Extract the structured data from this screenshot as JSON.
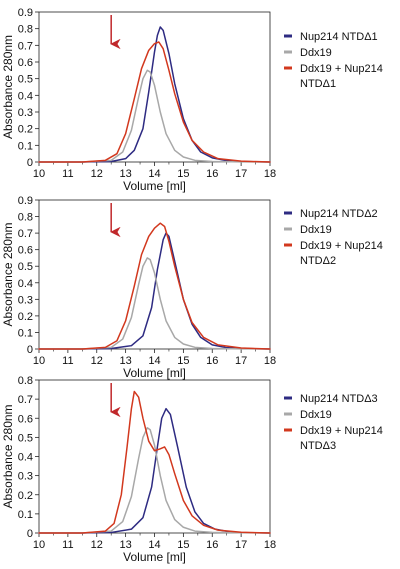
{
  "chart_data": [
    {
      "type": "line",
      "xlabel": "Volume [ml]",
      "ylabel": "Absorbance 280nm",
      "xlim": [
        10,
        18
      ],
      "ylim": [
        0,
        0.9
      ],
      "xticks": [
        "10",
        "11",
        "12",
        "13",
        "14",
        "15",
        "16",
        "17",
        "18"
      ],
      "yticks": [
        "0",
        "0.1",
        "0.2",
        "0.3",
        "0.4",
        "0.5",
        "0.6",
        "0.7",
        "0.8",
        "0.9"
      ],
      "arrow_x": 12.5,
      "legend": {
        "placement": "right",
        "entries": [
          {
            "label": "Nup214 NTDΔ1",
            "color": "#2e2b82"
          },
          {
            "label": "Ddx19",
            "color": "#a8a8a8"
          },
          {
            "label": "Ddx19 + Nup214",
            "label2": "NTDΔ1",
            "color": "#d2381e"
          }
        ]
      },
      "series": [
        {
          "color": "#2e2b82",
          "x": [
            10,
            11.5,
            12.5,
            13.0,
            13.3,
            13.6,
            13.8,
            14.0,
            14.1,
            14.2,
            14.3,
            14.5,
            14.7,
            15.0,
            15.3,
            15.6,
            16.0,
            16.5,
            17.0,
            18.0
          ],
          "y": [
            0,
            0,
            0.003,
            0.02,
            0.07,
            0.2,
            0.42,
            0.66,
            0.76,
            0.81,
            0.79,
            0.65,
            0.47,
            0.26,
            0.13,
            0.06,
            0.025,
            0.008,
            0.003,
            0
          ]
        },
        {
          "color": "#a8a8a8",
          "x": [
            10,
            11.5,
            12.5,
            12.9,
            13.2,
            13.45,
            13.6,
            13.75,
            13.85,
            14.0,
            14.2,
            14.4,
            14.7,
            15.0,
            15.4,
            16.0,
            17.0,
            18.0
          ],
          "y": [
            0,
            0,
            0.01,
            0.06,
            0.19,
            0.39,
            0.5,
            0.55,
            0.54,
            0.46,
            0.3,
            0.17,
            0.07,
            0.03,
            0.01,
            0.003,
            0.001,
            0
          ],
          "label_on_line": false
        },
        {
          "color": "#d2381e",
          "x": [
            10,
            11.5,
            12.3,
            12.7,
            13.0,
            13.3,
            13.55,
            13.8,
            14.0,
            14.15,
            14.3,
            14.5,
            14.7,
            15.0,
            15.3,
            15.7,
            16.2,
            17.0,
            18.0
          ],
          "y": [
            0,
            0,
            0.01,
            0.05,
            0.17,
            0.38,
            0.56,
            0.67,
            0.71,
            0.72,
            0.68,
            0.55,
            0.41,
            0.24,
            0.13,
            0.06,
            0.02,
            0.005,
            0
          ]
        }
      ]
    },
    {
      "type": "line",
      "xlabel": "Volume [ml]",
      "ylabel": "Absorbance 280nm",
      "xlim": [
        10,
        18
      ],
      "ylim": [
        0,
        0.9
      ],
      "xticks": [
        "10",
        "11",
        "12",
        "13",
        "14",
        "15",
        "16",
        "17",
        "18"
      ],
      "yticks": [
        "0",
        "0.1",
        "0.2",
        "0.3",
        "0.4",
        "0.5",
        "0.6",
        "0.7",
        "0.8",
        "0.9"
      ],
      "arrow_x": 12.5,
      "legend": {
        "placement": "right",
        "entries": [
          {
            "label": "Nup214 NTDΔ2",
            "color": "#2e2b82"
          },
          {
            "label": "Ddx19",
            "color": "#a8a8a8"
          },
          {
            "label": "Ddx19 + Nup214",
            "label2": "NTDΔ2",
            "color": "#d2381e"
          }
        ]
      },
      "series": [
        {
          "color": "#2e2b82",
          "x": [
            10,
            11.5,
            12.5,
            13.2,
            13.6,
            13.9,
            14.1,
            14.3,
            14.4,
            14.5,
            14.7,
            15.0,
            15.3,
            15.6,
            16.0,
            16.5,
            17.0,
            18.0
          ],
          "y": [
            0,
            0,
            0.003,
            0.02,
            0.08,
            0.25,
            0.48,
            0.66,
            0.7,
            0.68,
            0.53,
            0.3,
            0.15,
            0.07,
            0.025,
            0.008,
            0.003,
            0
          ]
        },
        {
          "color": "#a8a8a8",
          "x": [
            10,
            11.5,
            12.5,
            12.9,
            13.2,
            13.45,
            13.6,
            13.75,
            13.85,
            14.0,
            14.2,
            14.4,
            14.7,
            15.0,
            15.4,
            16.0,
            17.0,
            18.0
          ],
          "y": [
            0,
            0,
            0.01,
            0.06,
            0.19,
            0.39,
            0.5,
            0.55,
            0.54,
            0.46,
            0.3,
            0.17,
            0.07,
            0.03,
            0.01,
            0.003,
            0.001,
            0
          ]
        },
        {
          "color": "#d2381e",
          "x": [
            10,
            11.5,
            12.3,
            12.7,
            13.0,
            13.3,
            13.55,
            13.8,
            14.0,
            14.2,
            14.35,
            14.5,
            14.7,
            15.0,
            15.3,
            15.7,
            16.2,
            17.0,
            18.0
          ],
          "y": [
            0,
            0,
            0.01,
            0.05,
            0.17,
            0.38,
            0.57,
            0.68,
            0.73,
            0.76,
            0.74,
            0.65,
            0.5,
            0.3,
            0.16,
            0.07,
            0.025,
            0.006,
            0
          ]
        }
      ]
    },
    {
      "type": "line",
      "xlabel": "Volume [ml]",
      "ylabel": "Absorbance 280nm",
      "xlim": [
        10,
        18
      ],
      "ylim": [
        0,
        0.8
      ],
      "xticks": [
        "10",
        "11",
        "12",
        "13",
        "14",
        "15",
        "16",
        "17",
        "18"
      ],
      "yticks": [
        "0",
        "0.1",
        "0.2",
        "0.3",
        "0.4",
        "0.5",
        "0.6",
        "0.7",
        "0.8"
      ],
      "arrow_x": 12.5,
      "legend": {
        "placement": "right",
        "entries": [
          {
            "label": "Nup214 NTDΔ3",
            "color": "#2e2b82"
          },
          {
            "label": "Ddx19",
            "color": "#a8a8a8"
          },
          {
            "label": "Ddx19 + Nup214",
            "label2": "NTDΔ3",
            "color": "#d2381e"
          }
        ]
      },
      "series": [
        {
          "color": "#2e2b82",
          "x": [
            10,
            11.5,
            12.5,
            13.2,
            13.6,
            13.9,
            14.1,
            14.25,
            14.4,
            14.55,
            14.8,
            15.1,
            15.4,
            15.7,
            16.1,
            16.6,
            17.0,
            18.0
          ],
          "y": [
            0,
            0,
            0.003,
            0.02,
            0.08,
            0.24,
            0.45,
            0.6,
            0.65,
            0.62,
            0.45,
            0.24,
            0.11,
            0.05,
            0.02,
            0.006,
            0.002,
            0
          ]
        },
        {
          "color": "#a8a8a8",
          "x": [
            10,
            11.5,
            12.5,
            12.9,
            13.2,
            13.45,
            13.6,
            13.75,
            13.85,
            14.0,
            14.2,
            14.4,
            14.7,
            15.0,
            15.4,
            16.0,
            17.0,
            18.0
          ],
          "y": [
            0,
            0,
            0.01,
            0.06,
            0.19,
            0.39,
            0.5,
            0.55,
            0.54,
            0.46,
            0.3,
            0.17,
            0.07,
            0.03,
            0.01,
            0.003,
            0.001,
            0
          ]
        },
        {
          "color": "#d2381e",
          "x": [
            10,
            11.5,
            12.3,
            12.6,
            12.85,
            13.05,
            13.2,
            13.3,
            13.45,
            13.6,
            13.8,
            14.0,
            14.2,
            14.35,
            14.5,
            14.7,
            15.0,
            15.3,
            15.7,
            16.2,
            17.0,
            18.0
          ],
          "y": [
            0,
            0,
            0.01,
            0.05,
            0.2,
            0.45,
            0.65,
            0.74,
            0.71,
            0.6,
            0.48,
            0.43,
            0.44,
            0.45,
            0.41,
            0.31,
            0.17,
            0.09,
            0.04,
            0.015,
            0.004,
            0
          ]
        }
      ]
    }
  ]
}
